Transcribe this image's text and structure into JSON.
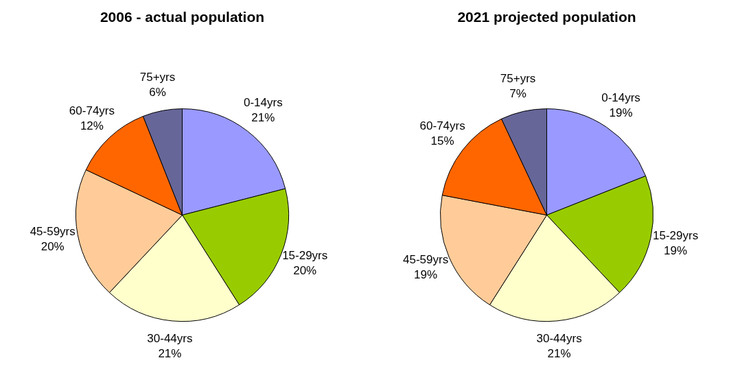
{
  "chart_data": [
    {
      "type": "pie",
      "title": "2006 - actual population",
      "categories": [
        "0-14yrs",
        "15-29yrs",
        "30-44yrs",
        "45-59yrs",
        "60-74yrs",
        "75+yrs"
      ],
      "values": [
        21,
        20,
        21,
        20,
        12,
        6
      ],
      "value_labels": [
        "21%",
        "20%",
        "21%",
        "20%",
        "12%",
        "6%"
      ],
      "colors": [
        "#9999ff",
        "#99cc00",
        "#ffffcc",
        "#ffcc99",
        "#ff6600",
        "#666699"
      ]
    },
    {
      "type": "pie",
      "title": "2021 projected population",
      "categories": [
        "0-14yrs",
        "15-29yrs",
        "30-44yrs",
        "45-59yrs",
        "60-74yrs",
        "75+yrs"
      ],
      "values": [
        19,
        19,
        21,
        19,
        15,
        7
      ],
      "value_labels": [
        "19%",
        "19%",
        "21%",
        "19%",
        "15%",
        "7%"
      ],
      "colors": [
        "#9999ff",
        "#99cc00",
        "#ffffcc",
        "#ffcc99",
        "#ff6600",
        "#666699"
      ]
    }
  ]
}
